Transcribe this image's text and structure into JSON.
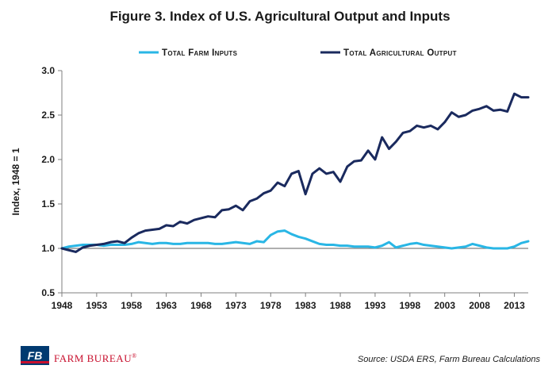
{
  "chart_data": {
    "type": "line",
    "title": "Figure 3. Index of U.S. Agricultural Output and Inputs",
    "xlabel": "",
    "ylabel": "Index, 1948 = 1",
    "ylim": [
      0.5,
      3.0
    ],
    "yticks": [
      "0.5",
      "1.0",
      "1.5",
      "2.0",
      "2.5",
      "3.0"
    ],
    "xlim": [
      1948,
      2015
    ],
    "xticks": [
      "1948",
      "1953",
      "1958",
      "1963",
      "1968",
      "1973",
      "1978",
      "1983",
      "1988",
      "1993",
      "1998",
      "2003",
      "2008",
      "2013"
    ],
    "reference_line": 1.0,
    "series": [
      {
        "name": "Total Farm Inputs",
        "color": "#29b6e5",
        "x": [
          1948,
          1949,
          1950,
          1951,
          1952,
          1953,
          1954,
          1955,
          1956,
          1957,
          1958,
          1959,
          1960,
          1961,
          1962,
          1963,
          1964,
          1965,
          1966,
          1967,
          1968,
          1969,
          1970,
          1971,
          1972,
          1973,
          1974,
          1975,
          1976,
          1977,
          1978,
          1979,
          1980,
          1981,
          1982,
          1983,
          1984,
          1985,
          1986,
          1987,
          1988,
          1989,
          1990,
          1991,
          1992,
          1993,
          1994,
          1995,
          1996,
          1997,
          1998,
          1999,
          2000,
          2001,
          2002,
          2003,
          2004,
          2005,
          2006,
          2007,
          2008,
          2009,
          2010,
          2011,
          2012,
          2013,
          2014,
          2015
        ],
        "values": [
          1.0,
          1.02,
          1.03,
          1.04,
          1.04,
          1.04,
          1.03,
          1.04,
          1.04,
          1.04,
          1.05,
          1.07,
          1.06,
          1.05,
          1.06,
          1.06,
          1.05,
          1.05,
          1.06,
          1.06,
          1.06,
          1.06,
          1.05,
          1.05,
          1.06,
          1.07,
          1.06,
          1.05,
          1.08,
          1.07,
          1.15,
          1.19,
          1.2,
          1.16,
          1.13,
          1.11,
          1.08,
          1.05,
          1.04,
          1.04,
          1.03,
          1.03,
          1.02,
          1.02,
          1.02,
          1.01,
          1.03,
          1.07,
          1.01,
          1.03,
          1.05,
          1.06,
          1.04,
          1.03,
          1.02,
          1.01,
          1.0,
          1.01,
          1.02,
          1.05,
          1.03,
          1.01,
          1.0,
          1.0,
          1.0,
          1.02,
          1.06,
          1.08
        ]
      },
      {
        "name": "Total Agricultural Output",
        "color": "#1a2a5e",
        "x": [
          1948,
          1949,
          1950,
          1951,
          1952,
          1953,
          1954,
          1955,
          1956,
          1957,
          1958,
          1959,
          1960,
          1961,
          1962,
          1963,
          1964,
          1965,
          1966,
          1967,
          1968,
          1969,
          1970,
          1971,
          1972,
          1973,
          1974,
          1975,
          1976,
          1977,
          1978,
          1979,
          1980,
          1981,
          1982,
          1983,
          1984,
          1985,
          1986,
          1987,
          1988,
          1989,
          1990,
          1991,
          1992,
          1993,
          1994,
          1995,
          1996,
          1997,
          1998,
          1999,
          2000,
          2001,
          2002,
          2003,
          2004,
          2005,
          2006,
          2007,
          2008,
          2009,
          2010,
          2011,
          2012,
          2013,
          2014,
          2015
        ],
        "values": [
          1.0,
          0.98,
          0.96,
          1.01,
          1.03,
          1.04,
          1.05,
          1.07,
          1.08,
          1.06,
          1.12,
          1.17,
          1.2,
          1.21,
          1.22,
          1.26,
          1.25,
          1.3,
          1.28,
          1.32,
          1.34,
          1.36,
          1.35,
          1.43,
          1.44,
          1.48,
          1.43,
          1.53,
          1.56,
          1.62,
          1.65,
          1.74,
          1.7,
          1.84,
          1.87,
          1.61,
          1.84,
          1.9,
          1.84,
          1.86,
          1.75,
          1.92,
          1.98,
          1.99,
          2.1,
          2.0,
          2.25,
          2.12,
          2.2,
          2.3,
          2.32,
          2.38,
          2.36,
          2.38,
          2.34,
          2.42,
          2.53,
          2.48,
          2.5,
          2.55,
          2.57,
          2.6,
          2.55,
          2.56,
          2.54,
          2.74,
          2.7,
          2.7
        ]
      }
    ]
  },
  "source": "Source: USDA ERS, Farm Bureau Calculations",
  "brand": {
    "logo_text": "FB",
    "name": "FARM BUREAU",
    "mark": "®",
    "colors": {
      "blue": "#003a70",
      "red": "#c8102e"
    }
  }
}
